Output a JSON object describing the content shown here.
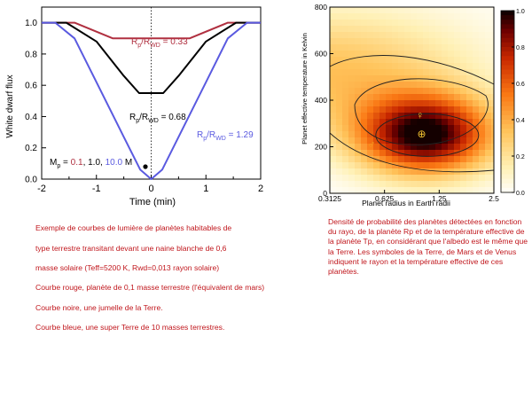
{
  "left_chart": {
    "chart_data": {
      "type": "line",
      "xlabel": "Time (min)",
      "ylabel": "White dwarf flux",
      "xlim": [
        -2,
        2
      ],
      "ylim": [
        0,
        1.1
      ],
      "x_ticks": [
        "-2",
        "-1",
        "0",
        "1",
        "2"
      ],
      "y_ticks": [
        "0.0",
        "0.2",
        "0.4",
        "0.6",
        "0.8",
        "1.0"
      ],
      "series": [
        {
          "name": "0.1",
          "color": "#b03040",
          "x": [
            -2,
            -1.4,
            -0.7,
            0.7,
            1.4,
            2
          ],
          "y": [
            1.0,
            1.0,
            0.9,
            0.9,
            1.0,
            1.0
          ]
        },
        {
          "name": "1.0",
          "color": "#000000",
          "x": [
            -2,
            -1.55,
            -1.0,
            -0.5,
            -0.22,
            0.22,
            0.5,
            1.0,
            1.55,
            2
          ],
          "y": [
            1.0,
            1.0,
            0.88,
            0.66,
            0.55,
            0.55,
            0.66,
            0.88,
            1.0,
            1.0
          ]
        },
        {
          "name": "10.0",
          "color": "#5a5ae0",
          "x": [
            -2,
            -1.75,
            -1.4,
            -1.0,
            -0.5,
            -0.2,
            0.0,
            0.2,
            0.5,
            1.0,
            1.4,
            1.75,
            2
          ],
          "y": [
            1.0,
            1.0,
            0.9,
            0.62,
            0.27,
            0.06,
            0.0,
            0.06,
            0.27,
            0.62,
            0.9,
            1.0,
            1.0
          ]
        }
      ],
      "annotations": [
        {
          "text": "Rp/RWD = 0.33",
          "color": "#b03040"
        },
        {
          "text": "Rp/RWD = 0.68",
          "color": "#000000"
        },
        {
          "text": "Rp/RWD = 1.29",
          "color": "#5a5ae0"
        }
      ],
      "mass_legend": {
        "prefix": "M",
        "sub": "p",
        "values": [
          "0.1",
          "1.0",
          "10.0"
        ],
        "unit": "M"
      }
    }
  },
  "right_chart": {
    "chart_data": {
      "type": "heatmap",
      "xlabel": "Planet radius in Earth radii",
      "ylabel": "Planet effective temperature in Kelvin",
      "x_ticks": [
        "0.3125",
        "0.625",
        "1.25",
        "2.5"
      ],
      "x_log_range": [
        0.3125,
        2.5
      ],
      "ylim": [
        0,
        800
      ],
      "y_ticks": [
        "0",
        "200",
        "400",
        "600",
        "800"
      ],
      "colorbar_ticks": [
        "0.0",
        "0.2",
        "0.4",
        "0.6",
        "0.8",
        "1.0"
      ],
      "peak": {
        "x": 1.05,
        "y": 250
      },
      "symbols": [
        {
          "name": "Venus",
          "glyph": "♀",
          "x": 0.98,
          "y": 335
        },
        {
          "name": "Earth",
          "glyph": "⊕",
          "x": 1.0,
          "y": 255
        },
        {
          "name": "Mars",
          "glyph": "♂",
          "x": 0.53,
          "y": 210
        }
      ]
    }
  },
  "captions": {
    "left": [
      "Exemple de courbes de lumière de planètes habitables de",
      "type terrestre transitant devant une naine blanche de 0,6",
      "masse solaire (Teff=5200 K, Rwd=0,013 rayon solaire)",
      "Courbe rouge, planète de 0,1 masse terrestre (l'équivalent de mars)",
      "Courbe noire, une jumelle de la Terre.",
      "Courbe bleue, une super Terre de 10 masses terrestres."
    ],
    "right": "Densité de probabilité des planètes détectées en fonction du rayo, de la planète Rp et de la température effective de la planète Tp, en considérant que l'albedo est le même que la Terre. Les symboles de la Terre, de Mars et de Venus indiquent le rayon et la température effective de ces planètes."
  }
}
